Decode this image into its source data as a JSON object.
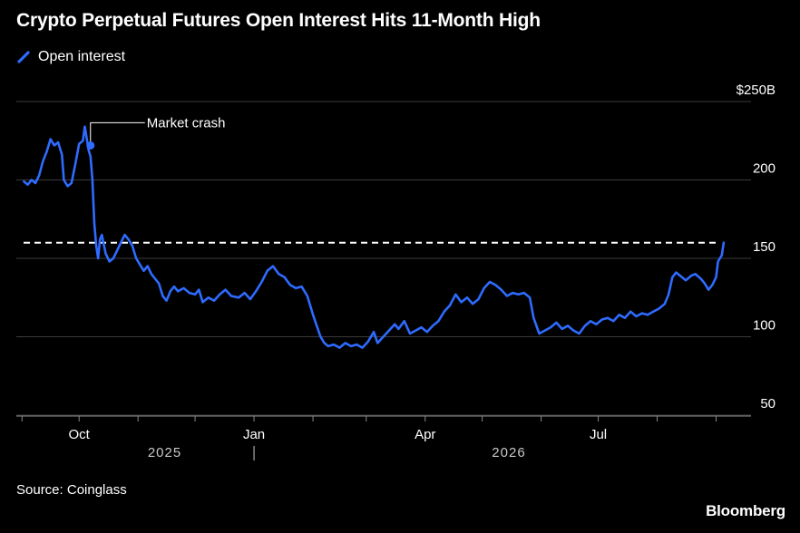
{
  "chart_data": {
    "type": "line",
    "title": "Crypto Perpetual Futures Open Interest Hits 11-Month High",
    "xlabel": "",
    "ylabel": "",
    "y_axis": {
      "ticks": [
        50,
        100,
        150,
        200,
        250
      ],
      "tick_labels": [
        "50",
        "100",
        "150",
        "200",
        "$250B"
      ],
      "range": [
        50,
        250
      ]
    },
    "x_axis": {
      "month_labels": [
        {
          "date": "2025-10-01",
          "label": "Oct"
        },
        {
          "date": "2026-01-01",
          "label": "Jan"
        },
        {
          "date": "2026-04-01",
          "label": "Apr"
        },
        {
          "date": "2026-07-01",
          "label": "Jul"
        }
      ],
      "year_labels": [
        {
          "date": "2025-11-15",
          "label": "2025"
        },
        {
          "date": "2026-05-15",
          "label": "2026"
        }
      ],
      "year_divider": "2026-01-01",
      "minor_ticks": [
        "2025-09-01",
        "2025-10-01",
        "2025-11-01",
        "2025-12-01",
        "2026-01-01",
        "2026-02-01",
        "2026-03-01",
        "2026-04-01",
        "2026-05-01",
        "2026-06-01",
        "2026-07-01",
        "2026-08-01",
        "2026-09-01"
      ],
      "range": [
        "2025-09-01",
        "2026-09-30"
      ]
    },
    "grid": true,
    "legend": "top-left",
    "series": [
      {
        "name": "Open interest",
        "color": "#2f6bff",
        "points": [
          [
            "2025-09-02",
            199
          ],
          [
            "2025-09-04",
            197
          ],
          [
            "2025-09-06",
            200
          ],
          [
            "2025-09-08",
            198
          ],
          [
            "2025-09-10",
            203
          ],
          [
            "2025-09-12",
            212
          ],
          [
            "2025-09-14",
            218
          ],
          [
            "2025-09-16",
            226
          ],
          [
            "2025-09-18",
            222
          ],
          [
            "2025-09-20",
            224
          ],
          [
            "2025-09-22",
            216
          ],
          [
            "2025-09-23",
            200
          ],
          [
            "2025-09-25",
            196
          ],
          [
            "2025-09-27",
            198
          ],
          [
            "2025-09-29",
            210
          ],
          [
            "2025-10-01",
            223
          ],
          [
            "2025-10-03",
            225
          ],
          [
            "2025-10-04",
            234
          ],
          [
            "2025-10-06",
            219
          ],
          [
            "2025-10-07",
            215
          ],
          [
            "2025-10-08",
            200
          ],
          [
            "2025-10-09",
            172
          ],
          [
            "2025-10-10",
            158
          ],
          [
            "2025-10-11",
            150
          ],
          [
            "2025-10-12",
            162
          ],
          [
            "2025-10-13",
            165
          ],
          [
            "2025-10-15",
            153
          ],
          [
            "2025-10-17",
            148
          ],
          [
            "2025-10-19",
            150
          ],
          [
            "2025-10-21",
            155
          ],
          [
            "2025-10-23",
            160
          ],
          [
            "2025-10-25",
            165
          ],
          [
            "2025-10-27",
            162
          ],
          [
            "2025-10-29",
            158
          ],
          [
            "2025-10-31",
            150
          ],
          [
            "2025-11-02",
            146
          ],
          [
            "2025-11-04",
            142
          ],
          [
            "2025-11-06",
            145
          ],
          [
            "2025-11-08",
            140
          ],
          [
            "2025-11-10",
            137
          ],
          [
            "2025-11-12",
            134
          ],
          [
            "2025-11-14",
            126
          ],
          [
            "2025-11-16",
            123
          ],
          [
            "2025-11-18",
            129
          ],
          [
            "2025-11-20",
            132
          ],
          [
            "2025-11-22",
            129
          ],
          [
            "2025-11-25",
            131
          ],
          [
            "2025-11-28",
            128
          ],
          [
            "2025-12-01",
            127
          ],
          [
            "2025-12-03",
            130
          ],
          [
            "2025-12-05",
            122
          ],
          [
            "2025-12-08",
            125
          ],
          [
            "2025-12-11",
            123
          ],
          [
            "2025-12-14",
            127
          ],
          [
            "2025-12-17",
            130
          ],
          [
            "2025-12-20",
            126
          ],
          [
            "2025-12-24",
            125
          ],
          [
            "2025-12-27",
            128
          ],
          [
            "2025-12-30",
            124
          ],
          [
            "2026-01-02",
            129
          ],
          [
            "2026-01-05",
            135
          ],
          [
            "2026-01-08",
            142
          ],
          [
            "2026-01-11",
            145
          ],
          [
            "2026-01-14",
            140
          ],
          [
            "2026-01-17",
            138
          ],
          [
            "2026-01-20",
            133
          ],
          [
            "2026-01-23",
            131
          ],
          [
            "2026-01-26",
            132
          ],
          [
            "2026-01-29",
            126
          ],
          [
            "2026-02-01",
            114
          ],
          [
            "2026-02-03",
            107
          ],
          [
            "2026-02-05",
            100
          ],
          [
            "2026-02-07",
            96
          ],
          [
            "2026-02-09",
            94
          ],
          [
            "2026-02-12",
            95
          ],
          [
            "2026-02-15",
            93
          ],
          [
            "2026-02-18",
            96
          ],
          [
            "2026-02-21",
            94
          ],
          [
            "2026-02-24",
            95
          ],
          [
            "2026-02-27",
            93
          ],
          [
            "2026-03-02",
            97
          ],
          [
            "2026-03-05",
            103
          ],
          [
            "2026-03-07",
            96
          ],
          [
            "2026-03-10",
            100
          ],
          [
            "2026-03-13",
            104
          ],
          [
            "2026-03-16",
            108
          ],
          [
            "2026-03-18",
            105
          ],
          [
            "2026-03-21",
            110
          ],
          [
            "2026-03-24",
            102
          ],
          [
            "2026-03-27",
            104
          ],
          [
            "2026-03-30",
            106
          ],
          [
            "2026-04-02",
            103
          ],
          [
            "2026-04-05",
            107
          ],
          [
            "2026-04-08",
            110
          ],
          [
            "2026-04-11",
            116
          ],
          [
            "2026-04-14",
            120
          ],
          [
            "2026-04-17",
            127
          ],
          [
            "2026-04-20",
            122
          ],
          [
            "2026-04-23",
            125
          ],
          [
            "2026-04-26",
            121
          ],
          [
            "2026-04-29",
            124
          ],
          [
            "2026-05-02",
            131
          ],
          [
            "2026-05-05",
            135
          ],
          [
            "2026-05-08",
            133
          ],
          [
            "2026-05-11",
            130
          ],
          [
            "2026-05-14",
            126
          ],
          [
            "2026-05-17",
            128
          ],
          [
            "2026-05-20",
            127
          ],
          [
            "2026-05-23",
            128
          ],
          [
            "2026-05-26",
            125
          ],
          [
            "2026-05-28",
            112
          ],
          [
            "2026-05-31",
            102
          ],
          [
            "2026-06-03",
            104
          ],
          [
            "2026-06-06",
            106
          ],
          [
            "2026-06-09",
            109
          ],
          [
            "2026-06-12",
            105
          ],
          [
            "2026-06-15",
            107
          ],
          [
            "2026-06-18",
            104
          ],
          [
            "2026-06-21",
            102
          ],
          [
            "2026-06-24",
            107
          ],
          [
            "2026-06-27",
            110
          ],
          [
            "2026-06-30",
            108
          ],
          [
            "2026-07-03",
            111
          ],
          [
            "2026-07-06",
            112
          ],
          [
            "2026-07-09",
            110
          ],
          [
            "2026-07-12",
            114
          ],
          [
            "2026-07-15",
            112
          ],
          [
            "2026-07-18",
            116
          ],
          [
            "2026-07-21",
            113
          ],
          [
            "2026-07-24",
            115
          ],
          [
            "2026-07-27",
            114
          ],
          [
            "2026-07-30",
            116
          ],
          [
            "2026-08-02",
            118
          ],
          [
            "2026-08-05",
            121
          ],
          [
            "2026-08-07",
            127
          ],
          [
            "2026-08-09",
            138
          ],
          [
            "2026-08-11",
            141
          ],
          [
            "2026-08-14",
            138
          ],
          [
            "2026-08-16",
            136
          ],
          [
            "2026-08-19",
            139
          ],
          [
            "2026-08-21",
            140
          ],
          [
            "2026-08-24",
            137
          ],
          [
            "2026-08-26",
            134
          ],
          [
            "2026-08-28",
            130
          ],
          [
            "2026-08-30",
            133
          ],
          [
            "2026-09-01",
            138
          ],
          [
            "2026-09-02",
            148
          ],
          [
            "2026-09-04",
            152
          ],
          [
            "2026-09-05",
            160
          ]
        ]
      }
    ],
    "reference_line": {
      "y": 160,
      "style": "dashed",
      "color": "#ffffff"
    },
    "annotations": [
      {
        "text": "Market crash",
        "date": "2025-10-07",
        "y": 222
      }
    ]
  },
  "source": "Source: Coinglass",
  "brand": "Bloomberg",
  "colors": {
    "background": "#000000",
    "line": "#2f6bff",
    "grid": "#3c3c3c",
    "text": "#ffffff"
  },
  "icons": {
    "legend": "slash-line-icon"
  }
}
